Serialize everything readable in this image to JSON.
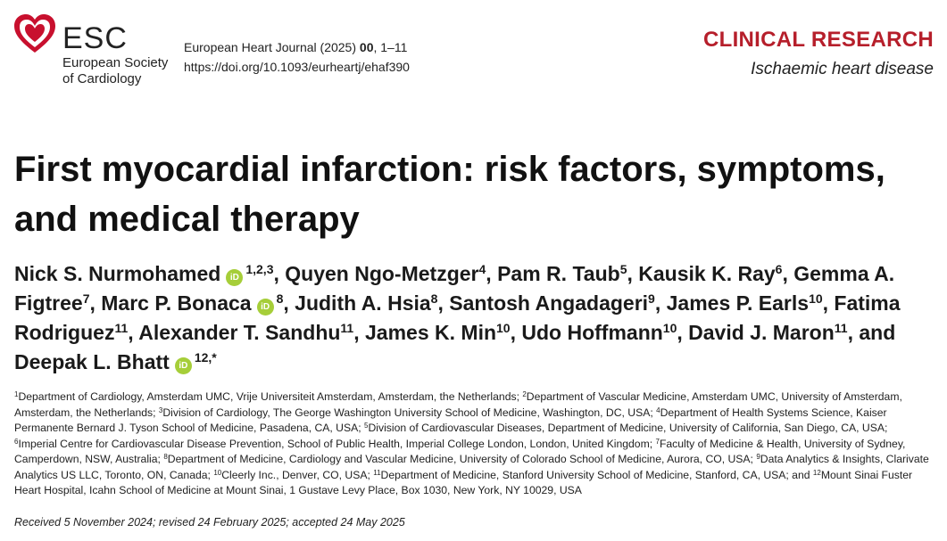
{
  "header": {
    "logo_abbr": "ESC",
    "logo_name": "European Society\nof Cardiology",
    "journal_name": "European Heart Journal (2025)",
    "journal_volume": "00",
    "journal_pages": ", 1–11",
    "doi": "https://doi.org/10.1093/eurheartj/ehaf390",
    "section": "CLINICAL RESEARCH",
    "subsection": "Ischaemic heart disease"
  },
  "title": "First myocardial infarction: risk factors, symptoms, and medical therapy",
  "orcid_label": "iD",
  "authors": [
    {
      "name": "Nick S. Nurmohamed",
      "orcid": true,
      "aff": "1,2,3",
      "sep": ", "
    },
    {
      "name": "Quyen Ngo-Metzger",
      "orcid": false,
      "aff": "4",
      "sep": ", "
    },
    {
      "name": "Pam R. Taub",
      "orcid": false,
      "aff": "5",
      "sep": ", "
    },
    {
      "name": "Kausik K. Ray",
      "orcid": false,
      "aff": "6",
      "sep": ", "
    },
    {
      "name": "Gemma A. Figtree",
      "orcid": false,
      "aff": "7",
      "sep": ", "
    },
    {
      "name": "Marc P. Bonaca",
      "orcid": true,
      "aff": "8",
      "sep": ", "
    },
    {
      "name": "Judith A. Hsia",
      "orcid": false,
      "aff": "8",
      "sep": ", "
    },
    {
      "name": "Santosh Angadageri",
      "orcid": false,
      "aff": "9",
      "sep": ", "
    },
    {
      "name": "James P. Earls",
      "orcid": false,
      "aff": "10",
      "sep": ", "
    },
    {
      "name": "Fatima Rodriguez",
      "orcid": false,
      "aff": "11",
      "sep": ", "
    },
    {
      "name": "Alexander T. Sandhu",
      "orcid": false,
      "aff": "11",
      "sep": ", "
    },
    {
      "name": "James K. Min",
      "orcid": false,
      "aff": "10",
      "sep": ", "
    },
    {
      "name": "Udo Hoffmann",
      "orcid": false,
      "aff": "10",
      "sep": ", "
    },
    {
      "name": "David J. Maron",
      "orcid": false,
      "aff": "11",
      "sep": ", and "
    },
    {
      "name": "Deepak L. Bhatt",
      "orcid": true,
      "aff": "12,*",
      "sep": ""
    }
  ],
  "affiliations": [
    {
      "num": "1",
      "text": "Department of Cardiology, Amsterdam UMC, Vrije Universiteit Amsterdam, Amsterdam, the Netherlands; "
    },
    {
      "num": "2",
      "text": "Department of Vascular Medicine, Amsterdam UMC, University of Amsterdam, Amsterdam, the Netherlands; "
    },
    {
      "num": "3",
      "text": "Division of Cardiology, The George Washington University School of Medicine, Washington, DC, USA; "
    },
    {
      "num": "4",
      "text": "Department of Health Systems Science, Kaiser Permanente Bernard J. Tyson School of Medicine, Pasadena, CA, USA; "
    },
    {
      "num": "5",
      "text": "Division of Cardiovascular Diseases, Department of Medicine, University of California, San Diego, CA, USA; "
    },
    {
      "num": "6",
      "text": "Imperial Centre for Cardiovascular Disease Prevention, School of Public Health, Imperial College London, London, United Kingdom; "
    },
    {
      "num": "7",
      "text": "Faculty of Medicine & Health, University of Sydney, Camperdown, NSW, Australia; "
    },
    {
      "num": "8",
      "text": "Department of Medicine, Cardiology and Vascular Medicine, University of Colorado School of Medicine, Aurora, CO, USA; "
    },
    {
      "num": "9",
      "text": "Data Analytics & Insights, Clarivate Analytics US LLC, Toronto, ON, Canada; "
    },
    {
      "num": "10",
      "text": "Cleerly Inc., Denver, CO, USA; "
    },
    {
      "num": "11",
      "text": "Department of Medicine, Stanford University School of Medicine, Stanford, CA, USA; and "
    },
    {
      "num": "12",
      "text": "Mount Sinai Fuster Heart Hospital, Icahn School of Medicine at Mount Sinai, 1 Gustave Levy Place, Box 1030, New York, NY 10029, USA"
    }
  ],
  "dates": "Received 5 November 2024; revised 24 February 2025; accepted 24 May 2025",
  "colors": {
    "brand_red": "#b61f2b",
    "orcid_green": "#a6ce39"
  }
}
